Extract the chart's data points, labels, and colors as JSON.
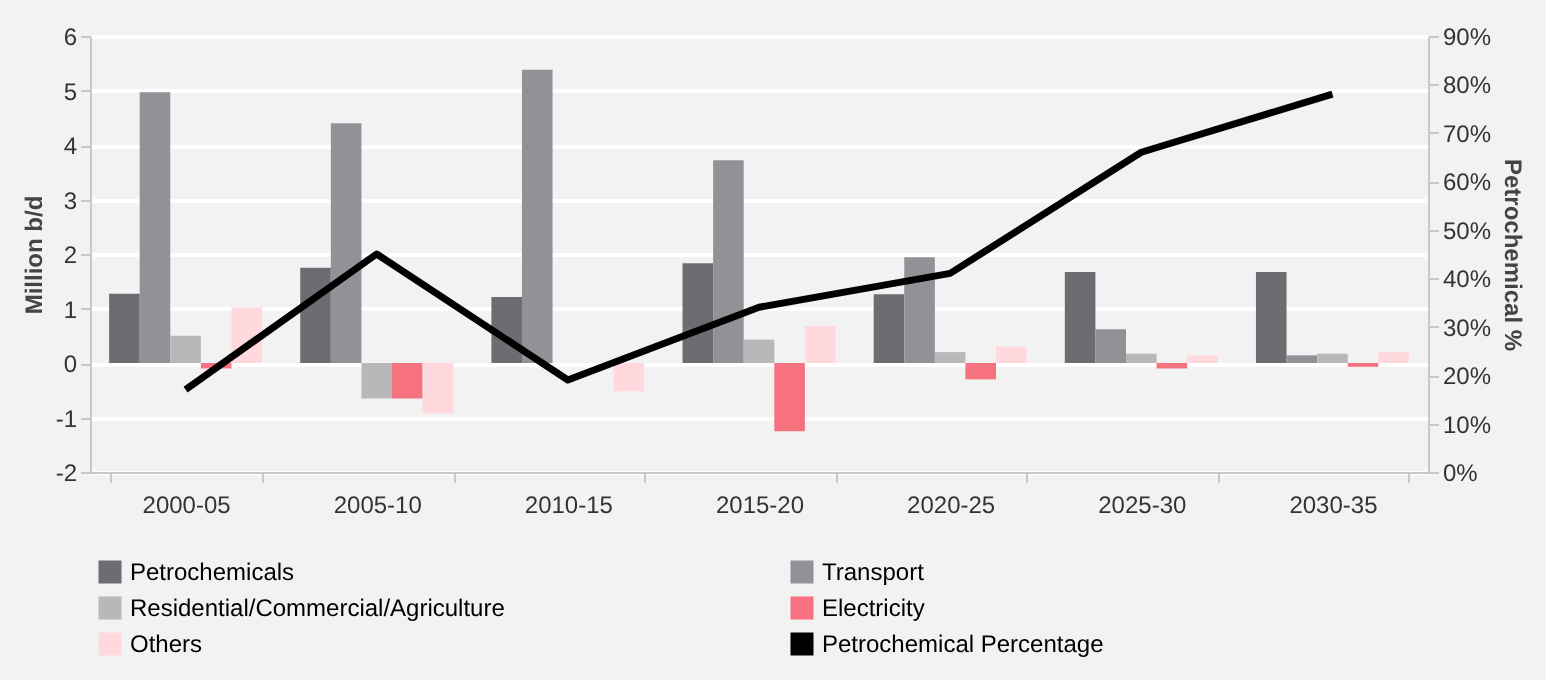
{
  "chart_data": {
    "type": "bar",
    "ylabel": "Million b/d",
    "y2label": "Petrochemical %",
    "categories": [
      "2000-05",
      "2005-10",
      "2010-15",
      "2015-20",
      "2020-25",
      "2025-30",
      "2030-35"
    ],
    "series": [
      {
        "name": "Petrochemicals",
        "color": "#6d6c72",
        "values": [
          1.27,
          1.75,
          1.21,
          1.83,
          1.26,
          1.67,
          1.67
        ]
      },
      {
        "name": "Transport",
        "color": "#939197",
        "values": [
          4.97,
          4.4,
          5.38,
          3.72,
          1.94,
          0.62,
          0.14
        ]
      },
      {
        "name": "Residential/Commercial/Agriculture",
        "color": "#b8b8b8",
        "values": [
          0.5,
          -0.65,
          0,
          0.43,
          0.2,
          0.17,
          0.17
        ]
      },
      {
        "name": "Electricity",
        "color": "#f7727f",
        "values": [
          -0.1,
          -0.65,
          0,
          -1.25,
          -0.3,
          -0.1,
          -0.07
        ]
      },
      {
        "name": "Others",
        "color": "#ffd9dd",
        "values": [
          1.02,
          -0.92,
          -0.52,
          0.68,
          0.3,
          0.14,
          0.2
        ]
      },
      {
        "name": "Petrochemical Percentage",
        "color": "#000000",
        "type": "line",
        "axis": "y2",
        "values": [
          17,
          45,
          19,
          34,
          41,
          66,
          78
        ]
      }
    ],
    "ylim": [
      -2,
      6
    ],
    "yticks": [
      -2,
      -1,
      0,
      1,
      2,
      3,
      4,
      5,
      6
    ],
    "y2lim": [
      0,
      90
    ],
    "y2ticks": [
      {
        "value": 0,
        "label": "0%"
      },
      {
        "value": 10,
        "label": "10%"
      },
      {
        "value": 20,
        "label": "20%"
      },
      {
        "value": 30,
        "label": "30%"
      },
      {
        "value": 40,
        "label": "40%"
      },
      {
        "value": 50,
        "label": "50%"
      },
      {
        "value": 60,
        "label": "60%"
      },
      {
        "value": 70,
        "label": "70%"
      },
      {
        "value": 80,
        "label": "80%"
      },
      {
        "value": 90,
        "label": "90%"
      }
    ],
    "grid": "y",
    "legend": "bottom"
  }
}
